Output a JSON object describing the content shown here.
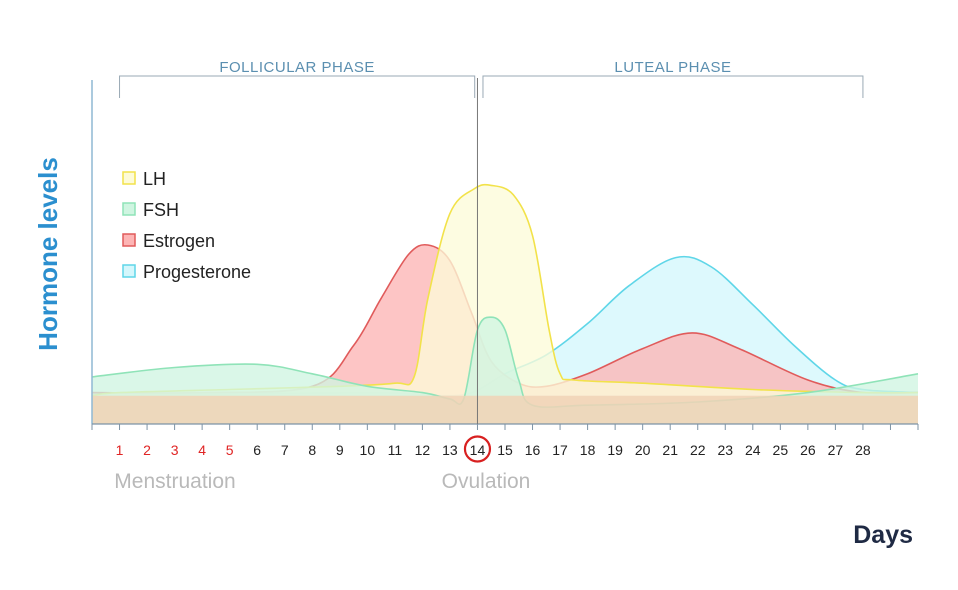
{
  "chart_data": {
    "type": "area",
    "title": "",
    "xlabel": "Days",
    "ylabel": "Hormone levels",
    "xlim": [
      0,
      30
    ],
    "ylim": [
      0,
      100
    ],
    "categories": [
      "1",
      "2",
      "3",
      "4",
      "5",
      "6",
      "7",
      "8",
      "9",
      "10",
      "11",
      "12",
      "13",
      "14",
      "15",
      "16",
      "17",
      "18",
      "19",
      "20",
      "21",
      "22",
      "23",
      "24",
      "25",
      "26",
      "27",
      "28"
    ],
    "menstruation_days": [
      "1",
      "2",
      "3",
      "4",
      "5"
    ],
    "highlight_day": "14",
    "phases": [
      {
        "label": "FOLLICULAR PHASE",
        "start": 1,
        "end": 13.9
      },
      {
        "label": "LUTEAL PHASE",
        "start": 14.2,
        "end": 28
      }
    ],
    "annotations": [
      {
        "label": "Menstruation",
        "x": 3.5
      },
      {
        "label": "Ovulation",
        "x": 14
      }
    ],
    "baseline": {
      "x": [
        0,
        30
      ],
      "y": [
        9,
        9
      ]
    },
    "series": [
      {
        "name": "LH",
        "color": "#f2e24a",
        "fill": "#fdfbd8",
        "x": [
          0,
          1,
          5,
          9,
          11,
          11.7,
          12.2,
          13,
          13.9,
          14.5,
          15.3,
          16,
          16.6,
          17,
          17.5,
          20,
          24,
          28,
          30
        ],
        "y": [
          9,
          10,
          11,
          12,
          13,
          15,
          40,
          67,
          75,
          76,
          73,
          60,
          30,
          16,
          14,
          13,
          11,
          10,
          10
        ]
      },
      {
        "name": "FSH",
        "color": "#8fe3b8",
        "fill": "#cff5e1",
        "x": [
          0,
          3,
          6,
          8,
          10,
          12,
          13,
          13.5,
          14,
          14.5,
          15,
          15.5,
          16,
          18,
          22,
          26,
          30
        ],
        "y": [
          15,
          18,
          19,
          16,
          12,
          10,
          8,
          8,
          30,
          34,
          30,
          14,
          6,
          6,
          7,
          10,
          16
        ]
      },
      {
        "name": "Estrogen",
        "color": "#e05b5b",
        "fill": "#fdb5b5",
        "x": [
          0,
          4,
          8,
          9.5,
          10.5,
          11.5,
          12.2,
          13,
          13.8,
          14.5,
          15.5,
          16.5,
          18,
          20,
          21.8,
          23.5,
          26,
          28,
          30
        ],
        "y": [
          10,
          10,
          12,
          25,
          40,
          54,
          57,
          52,
          35,
          20,
          13,
          12,
          16,
          24,
          29,
          24,
          14,
          10,
          10
        ]
      },
      {
        "name": "Progesterone",
        "color": "#5fd6e8",
        "fill": "#d4f7fc",
        "x": [
          0,
          10,
          12.5,
          13.8,
          15,
          16.5,
          18,
          19.5,
          21.2,
          22.5,
          24,
          25.5,
          27,
          28,
          30
        ],
        "y": [
          9,
          10,
          9,
          10,
          16,
          22,
          32,
          44,
          53,
          50,
          38,
          25,
          14,
          11,
          10
        ]
      }
    ]
  }
}
